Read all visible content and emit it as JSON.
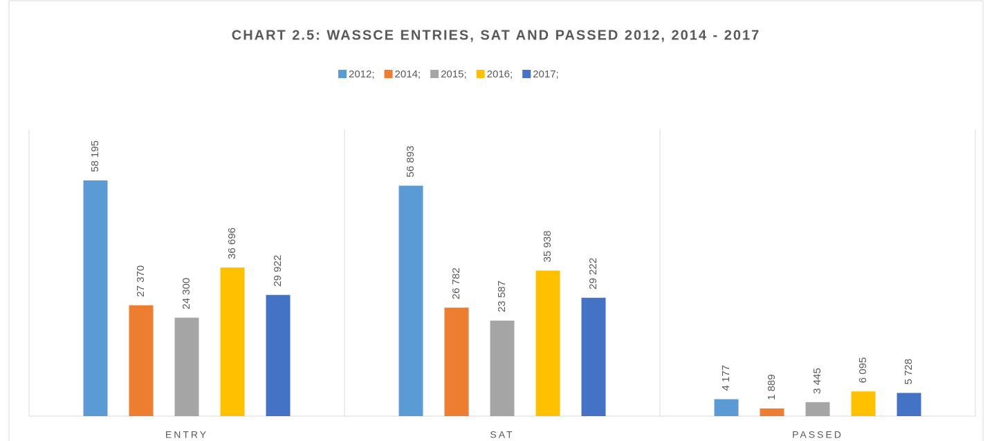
{
  "chart_data": {
    "type": "bar",
    "title": "CHART 2.5: WASSCE ENTRIES, SAT AND PASSED 2012, 2014 - 2017",
    "categories": [
      "ENTRY",
      "SAT",
      "PASSED"
    ],
    "series": [
      {
        "name": "2012;",
        "color": "#5b9bd5",
        "values": [
          58195,
          56893,
          4177
        ],
        "value_labels": [
          "58 195",
          "56 893",
          "4 177"
        ]
      },
      {
        "name": "2014;",
        "color": "#ed7d31",
        "values": [
          27370,
          26782,
          1889
        ],
        "value_labels": [
          "27 370",
          "26 782",
          "1 889"
        ]
      },
      {
        "name": "2015;",
        "color": "#a5a5a5",
        "values": [
          24300,
          23587,
          3445
        ],
        "value_labels": [
          "24 300",
          "23 587",
          "3 445"
        ]
      },
      {
        "name": "2016;",
        "color": "#ffc000",
        "values": [
          36696,
          35938,
          6095
        ],
        "value_labels": [
          "36 696",
          "35 938",
          "6 095"
        ]
      },
      {
        "name": "2017;",
        "color": "#4472c4",
        "values": [
          29922,
          29222,
          5728
        ],
        "value_labels": [
          "29 922",
          "29 222",
          "5 728"
        ]
      }
    ]
  }
}
